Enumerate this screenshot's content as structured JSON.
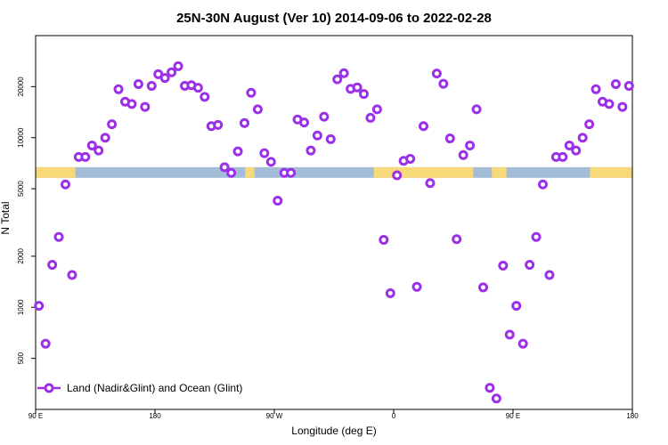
{
  "chart_data": {
    "type": "scatter",
    "title": "25N-30N August (Ver 10)   2014-09-06 to 2022-02-28",
    "xlabel": "Longitude (deg E)",
    "ylabel": "N Total",
    "x_scale": "longitude, 90E to 180 wrapping through 180",
    "y_scale": "log",
    "xlim": [
      90,
      540
    ],
    "ylim": [
      250,
      40000
    ],
    "x_ticks": [
      {
        "value": 90,
        "label": "90 E"
      },
      {
        "value": 180,
        "label": "180"
      },
      {
        "value": 270,
        "label": "90 W"
      },
      {
        "value": 360,
        "label": "0"
      },
      {
        "value": 450,
        "label": "90 E"
      },
      {
        "value": 540,
        "label": "180"
      }
    ],
    "y_ticks": [
      {
        "value": 500,
        "label": "500"
      },
      {
        "value": 1000,
        "label": "1000"
      },
      {
        "value": 2000,
        "label": "2000"
      },
      {
        "value": 5000,
        "label": "5000"
      },
      {
        "value": 10000,
        "label": "10000"
      },
      {
        "value": 20000,
        "label": "20000"
      }
    ],
    "land_ocean_band": {
      "y_range": [
        5800,
        6700
      ],
      "ocean_color": "#a3bcd8",
      "land_color": "#f7d97a",
      "land_segments": [
        [
          90,
          120
        ],
        [
          248,
          255
        ],
        [
          345,
          420
        ],
        [
          434,
          445
        ],
        [
          508,
          540
        ]
      ]
    },
    "legend": {
      "position": "bottom-left",
      "label": "Land (Nadir&Glint) and Ocean (Glint)"
    },
    "marker_color": "#9b30e8",
    "series": [
      {
        "name": "Land (Nadir&Glint) and Ocean (Glint)",
        "x": [
          92.5,
          97.5,
          102.5,
          107.5,
          112.5,
          117.5,
          122.5,
          127.5,
          132.5,
          137.5,
          142.5,
          147.5,
          152.5,
          157.5,
          162.5,
          167.5,
          172.5,
          177.5,
          182.5,
          187.5,
          192.5,
          197.5,
          202.5,
          207.5,
          212.5,
          217.5,
          222.5,
          227.5,
          232.5,
          237.5,
          242.5,
          247.5,
          252.5,
          257.5,
          262.5,
          267.5,
          272.5,
          277.5,
          282.5,
          287.5,
          292.5,
          297.5,
          302.5,
          307.5,
          312.5,
          317.5,
          322.5,
          327.5,
          332.5,
          337.5,
          342.5,
          347.5,
          352.5,
          357.5,
          362.5,
          367.5,
          372.5,
          377.5,
          382.5,
          387.5,
          392.5,
          397.5,
          402.5,
          407.5,
          412.5,
          417.5,
          422.5,
          427.5,
          432.5,
          437.5,
          442.5,
          447.5,
          452.5,
          457.5,
          462.5,
          467.5,
          472.5,
          477.5,
          482.5,
          487.5,
          492.5,
          497.5,
          502.5,
          507.5,
          512.5,
          517.5,
          522.5,
          527.5,
          532.5,
          537.5
        ],
        "y": [
          1020,
          610,
          1780,
          2600,
          5300,
          1550,
          7700,
          7700,
          9000,
          8400,
          10000,
          12000,
          19300,
          16300,
          15800,
          20700,
          15200,
          20200,
          23700,
          22500,
          24300,
          26400,
          20200,
          20400,
          19700,
          17400,
          11700,
          11900,
          6700,
          6200,
          8300,
          12200,
          18400,
          14700,
          8100,
          7200,
          4250,
          6200,
          6200,
          12800,
          12300,
          8400,
          10300,
          13300,
          9800,
          22100,
          24000,
          19400,
          19800,
          18100,
          13100,
          14700,
          2500,
          1210,
          6000,
          7300,
          7500,
          1320,
          11700,
          5400,
          23900,
          20800,
          9900,
          2520,
          7900,
          9000,
          14700,
          1310,
          335,
          290,
          1760,
          690,
          1020,
          610,
          1780,
          2600,
          5300,
          1550,
          7700,
          7700,
          9000,
          8400,
          10000,
          12000,
          19300,
          16300,
          15800,
          20700,
          15200,
          20200
        ]
      }
    ]
  }
}
